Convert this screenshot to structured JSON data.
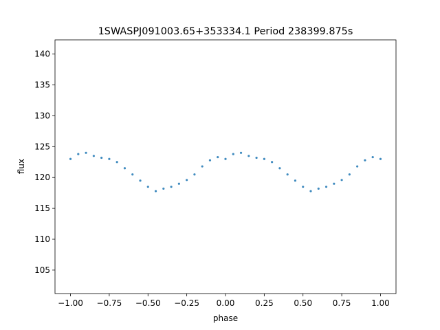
{
  "chart_data": {
    "type": "scatter",
    "title": "1SWASPJ091003.65+353334.1 Period 238399.875s",
    "xlabel": "phase",
    "ylabel": "flux",
    "xlim": [
      -1.1,
      1.1
    ],
    "ylim": [
      101.2,
      142.3
    ],
    "x_ticks": [
      -1.0,
      -0.75,
      -0.5,
      -0.25,
      0.0,
      0.25,
      0.5,
      0.75,
      1.0
    ],
    "x_tick_labels": [
      "−1.00",
      "−0.75",
      "−0.50",
      "−0.25",
      "0.00",
      "0.25",
      "0.50",
      "0.75",
      "1.00"
    ],
    "y_ticks": [
      105,
      110,
      115,
      120,
      125,
      130,
      135,
      140
    ],
    "y_tick_labels": [
      "105",
      "110",
      "115",
      "120",
      "125",
      "130",
      "135",
      "140"
    ],
    "grid": false,
    "legend": "none",
    "marker_color": "#1f77b4",
    "series": [
      {
        "x": [
          -1.0,
          -0.95,
          -0.9,
          -0.85,
          -0.8,
          -0.75,
          -0.7,
          -0.65,
          -0.6,
          -0.55,
          -0.5,
          -0.45,
          -0.4,
          -0.35,
          -0.3,
          -0.25,
          -0.2,
          -0.15,
          -0.1,
          -0.05,
          0.0,
          0.05,
          0.1,
          0.15,
          0.2,
          0.25,
          0.3,
          0.35,
          0.4,
          0.45,
          0.5,
          0.55,
          0.6,
          0.65,
          0.7,
          0.75,
          0.8,
          0.85,
          0.9,
          0.95,
          1.0
        ],
        "y": [
          123.0,
          123.8,
          124.0,
          123.5,
          123.2,
          123.0,
          122.5,
          121.5,
          120.5,
          119.5,
          118.5,
          117.8,
          118.2,
          118.5,
          119.0,
          119.6,
          120.5,
          121.8,
          122.8,
          123.3,
          123.0,
          123.8,
          124.0,
          123.5,
          123.2,
          123.0,
          122.5,
          121.5,
          120.5,
          119.5,
          118.5,
          117.8,
          118.2,
          118.5,
          119.0,
          119.6,
          120.5,
          121.8,
          122.8,
          123.3,
          123.0
        ]
      }
    ]
  }
}
